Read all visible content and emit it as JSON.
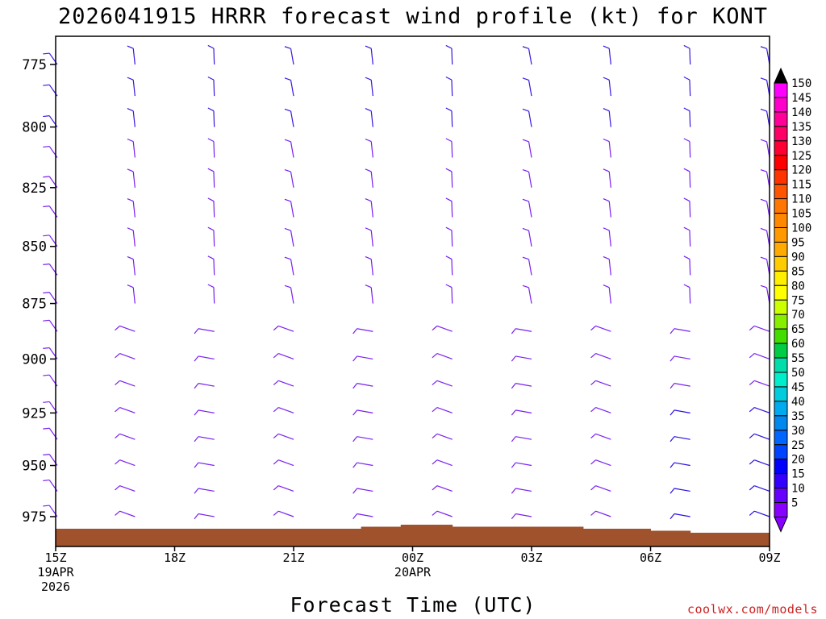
{
  "chart_data": {
    "type": "wind_barb_time_height",
    "title": "2026041915 HRRR forecast wind profile (kt) for KONT",
    "xlabel": "Forecast Time (UTC)",
    "credit": "coolwx.com/models",
    "y_axis": {
      "name": "pressure_hPa",
      "range": [
        988,
        758
      ],
      "ticks": [
        775,
        800,
        825,
        850,
        875,
        900,
        925,
        950,
        975
      ]
    },
    "x_axis": {
      "name": "forecast_hour",
      "range": [
        0,
        18
      ],
      "ticks": [
        {
          "hour": 0,
          "lines": [
            "15Z",
            "19APR",
            "2026"
          ]
        },
        {
          "hour": 3,
          "lines": [
            "18Z"
          ]
        },
        {
          "hour": 6,
          "lines": [
            "21Z"
          ]
        },
        {
          "hour": 9,
          "lines": [
            "00Z",
            "20APR"
          ]
        },
        {
          "hour": 12,
          "lines": [
            "03Z"
          ]
        },
        {
          "hour": 15,
          "lines": [
            "06Z"
          ]
        },
        {
          "hour": 18,
          "lines": [
            "09Z"
          ]
        }
      ]
    },
    "barb_columns": [
      0,
      2,
      4,
      6,
      8,
      10,
      12,
      14,
      16,
      18
    ],
    "barb_levels": [
      775,
      787.5,
      800,
      812.5,
      825,
      837.5,
      850,
      862.5,
      875,
      887.5,
      900,
      912.5,
      925,
      937.5,
      950,
      962.5,
      975
    ],
    "surface_pressure": [
      {
        "hour": 0,
        "p": 981
      },
      {
        "hour": 4.5,
        "p": 981
      },
      {
        "hour": 7.7,
        "p": 980
      },
      {
        "hour": 8.7,
        "p": 979
      },
      {
        "hour": 10,
        "p": 980
      },
      {
        "hour": 13.3,
        "p": 981
      },
      {
        "hour": 15,
        "p": 982
      },
      {
        "hour": 16,
        "p": 983
      },
      {
        "hour": 18,
        "p": 983
      }
    ],
    "colorbar": {
      "labels": [
        "150",
        "145",
        "140",
        "135",
        "130",
        "125",
        "120",
        "115",
        "110",
        "105",
        "100",
        "95",
        "90",
        "85",
        "80",
        "75",
        "70",
        "65",
        "60",
        "55",
        "50",
        "45",
        "40",
        "35",
        "30",
        "25",
        "20",
        "15",
        "10",
        "5"
      ],
      "colors": [
        "#ff00ff",
        "#ff00cc",
        "#ff0099",
        "#ff0066",
        "#ff0033",
        "#ff0000",
        "#ff3300",
        "#ff5500",
        "#ff7700",
        "#ff8800",
        "#ff9900",
        "#ffaa00",
        "#ffcc00",
        "#ffee00",
        "#ffff00",
        "#ccff00",
        "#88ee00",
        "#44dd00",
        "#00cc44",
        "#00ddaa",
        "#00eecc",
        "#00ccdd",
        "#00aaee",
        "#0088ee",
        "#0066ff",
        "#0044ff",
        "#0000ff",
        "#3300ff",
        "#6600ff",
        "#8800ff"
      ],
      "over_color": "#000000",
      "under_color": "#8800ff"
    }
  }
}
